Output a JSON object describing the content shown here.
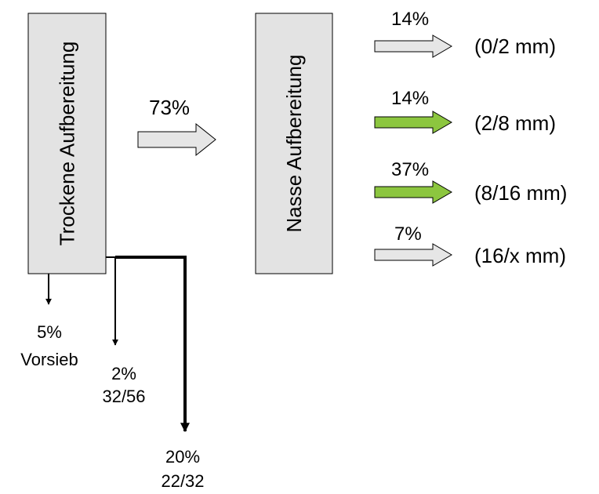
{
  "boxes": {
    "dry": "Trockene Aufbereitung",
    "wet": "Nasse Aufbereitung"
  },
  "main_flow": {
    "percent": "73%"
  },
  "outputs": [
    {
      "percent": "14%",
      "fraction": "(0/2 mm)",
      "highlighted": false
    },
    {
      "percent": "14%",
      "fraction": "(2/8 mm)",
      "highlighted": true
    },
    {
      "percent": "37%",
      "fraction": "(8/16 mm)",
      "highlighted": true
    },
    {
      "percent": "7%",
      "fraction": "(16/x mm)",
      "highlighted": false
    }
  ],
  "side_streams": [
    {
      "percent": "5%",
      "label": "Vorsieb"
    },
    {
      "percent": "2%",
      "label": "32/56"
    },
    {
      "percent": "20%",
      "label": "22/32"
    }
  ],
  "colors": {
    "box_fill": "#e3e3e3",
    "arrow_gray": "#e6e6e6",
    "arrow_green": "#8cc63f",
    "stroke": "#000000"
  }
}
